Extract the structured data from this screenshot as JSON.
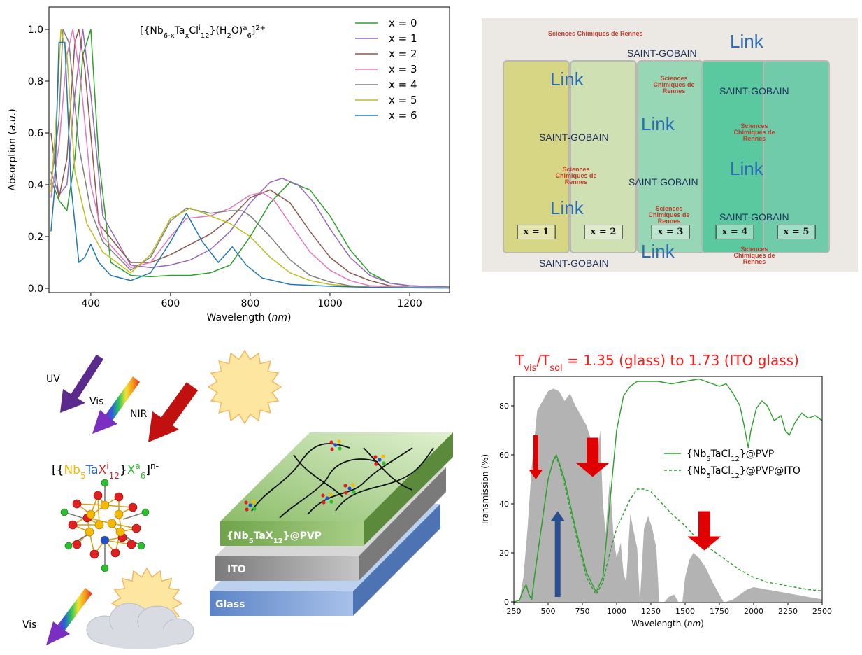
{
  "chart_data": [
    {
      "type": "line",
      "title": "[{Nb6-xTaxCli12}(H2O)a6]2+",
      "xlabel": "Wavelength (nm)",
      "ylabel": "Absorption (a.u.)",
      "xlim": [
        295,
        1300
      ],
      "ylim": [
        0,
        1.0
      ],
      "xticks": [
        400,
        600,
        800,
        1000,
        1200
      ],
      "yticks": [
        0.0,
        0.2,
        0.4,
        0.6,
        0.8,
        1.0
      ],
      "legend": "top-right",
      "series": [
        {
          "name": "x = 0",
          "color": "#2ca02c",
          "x": [
            300,
            320,
            340,
            360,
            380,
            400,
            420,
            450,
            500,
            550,
            600,
            650,
            700,
            750,
            800,
            850,
            900,
            950,
            1000,
            1050,
            1100,
            1150,
            1200,
            1300
          ],
          "y": [
            0.42,
            0.34,
            0.3,
            0.5,
            0.9,
            1.0,
            0.5,
            0.1,
            0.05,
            0.045,
            0.05,
            0.05,
            0.06,
            0.09,
            0.2,
            0.33,
            0.41,
            0.38,
            0.28,
            0.15,
            0.06,
            0.02,
            0.01,
            0.005
          ]
        },
        {
          "name": "x = 1",
          "color": "#9467bd",
          "x": [
            300,
            320,
            340,
            360,
            380,
            400,
            430,
            500,
            550,
            600,
            650,
            700,
            750,
            800,
            850,
            880,
            920,
            960,
            1000,
            1050,
            1100,
            1150,
            1200,
            1300
          ],
          "y": [
            0.45,
            0.36,
            0.4,
            0.75,
            1.0,
            0.75,
            0.28,
            0.09,
            0.08,
            0.09,
            0.11,
            0.15,
            0.22,
            0.33,
            0.41,
            0.425,
            0.4,
            0.33,
            0.23,
            0.12,
            0.05,
            0.02,
            0.01,
            0.005
          ]
        },
        {
          "name": "x = 2",
          "color": "#8c564b",
          "x": [
            300,
            320,
            340,
            360,
            370,
            385,
            420,
            500,
            550,
            600,
            650,
            700,
            750,
            800,
            850,
            900,
            950,
            1000,
            1050,
            1100,
            1150,
            1200,
            1300
          ],
          "y": [
            0.6,
            0.35,
            0.5,
            0.95,
            1.0,
            0.85,
            0.25,
            0.1,
            0.1,
            0.13,
            0.17,
            0.21,
            0.27,
            0.35,
            0.38,
            0.33,
            0.22,
            0.12,
            0.06,
            0.03,
            0.01,
            0.005,
            0.003
          ]
        },
        {
          "name": "x = 3",
          "color": "#e377c2",
          "x": [
            300,
            320,
            340,
            355,
            375,
            400,
            430,
            500,
            550,
            600,
            640,
            700,
            750,
            800,
            830,
            860,
            900,
            950,
            1000,
            1050,
            1100,
            1200,
            1300
          ],
          "y": [
            0.35,
            0.55,
            0.9,
            1.0,
            0.8,
            0.4,
            0.2,
            0.08,
            0.1,
            0.2,
            0.27,
            0.28,
            0.31,
            0.36,
            0.37,
            0.34,
            0.25,
            0.14,
            0.07,
            0.03,
            0.01,
            0.005,
            0.003
          ]
        },
        {
          "name": "x = 4",
          "color": "#7f7f7f",
          "x": [
            300,
            320,
            330,
            345,
            370,
            400,
            430,
            500,
            550,
            600,
            640,
            700,
            750,
            780,
            800,
            850,
            900,
            950,
            1000,
            1050,
            1100,
            1200,
            1300
          ],
          "y": [
            0.4,
            0.65,
            1.0,
            0.95,
            0.55,
            0.3,
            0.18,
            0.07,
            0.12,
            0.26,
            0.31,
            0.29,
            0.3,
            0.3,
            0.28,
            0.2,
            0.11,
            0.05,
            0.025,
            0.01,
            0.005,
            0.003,
            0.002
          ]
        },
        {
          "name": "x = 5",
          "color": "#bcbd22",
          "x": [
            300,
            315,
            325,
            340,
            360,
            390,
            430,
            500,
            550,
            600,
            650,
            700,
            750,
            800,
            850,
            900,
            950,
            1000,
            1050,
            1100,
            1200,
            1300
          ],
          "y": [
            0.37,
            0.7,
            1.0,
            0.9,
            0.45,
            0.25,
            0.14,
            0.06,
            0.13,
            0.27,
            0.31,
            0.28,
            0.25,
            0.2,
            0.12,
            0.06,
            0.03,
            0.015,
            0.008,
            0.005,
            0.003,
            0.002
          ]
        },
        {
          "name": "x = 6",
          "color": "#1f77b4",
          "x": [
            300,
            310,
            320,
            335,
            350,
            370,
            385,
            400,
            420,
            450,
            500,
            550,
            600,
            640,
            680,
            720,
            755,
            790,
            830,
            900,
            1000,
            1100,
            1200,
            1300
          ],
          "y": [
            0.22,
            0.4,
            0.95,
            0.95,
            0.4,
            0.1,
            0.12,
            0.17,
            0.1,
            0.05,
            0.03,
            0.06,
            0.18,
            0.29,
            0.18,
            0.1,
            0.16,
            0.09,
            0.04,
            0.015,
            0.008,
            0.004,
            0.002,
            0.001
          ]
        }
      ]
    },
    {
      "type": "line",
      "title": "Tvis/Tsol = 1.35 (glass) to 1.73 (ITO glass)",
      "xlabel": "Wavelength (nm)",
      "ylabel": "Transmission (%)",
      "xlim": [
        250,
        2500
      ],
      "ylim": [
        0,
        92
      ],
      "xticks": [
        250,
        500,
        750,
        1000,
        1250,
        1500,
        1750,
        2000,
        2250,
        2500
      ],
      "yticks": [
        0,
        20,
        40,
        60,
        80
      ],
      "legend": "center-right",
      "background_area": {
        "color": "#b3b3b3",
        "x": [
          290,
          320,
          350,
          380,
          420,
          460,
          500,
          540,
          580,
          620,
          660,
          700,
          740,
          780,
          820,
          850,
          880,
          900,
          920,
          950,
          980,
          1000,
          1030,
          1050,
          1070,
          1100,
          1120,
          1150,
          1170,
          1200,
          1230,
          1260,
          1290,
          1310,
          1330,
          1350,
          1380,
          1420,
          1450,
          1480,
          1500,
          1530,
          1560,
          1600,
          1650,
          1700,
          1750,
          1780,
          1800,
          1850,
          1900,
          1950,
          2000,
          2100,
          2200,
          2300,
          2400,
          2500
        ],
        "y": [
          0,
          10,
          30,
          55,
          78,
          82,
          86,
          87,
          86,
          82,
          85,
          80,
          76,
          72,
          65,
          55,
          70,
          40,
          28,
          50,
          25,
          18,
          24,
          12,
          8,
          36,
          30,
          22,
          0,
          30,
          35,
          30,
          22,
          0,
          0,
          0,
          2,
          3,
          0,
          0,
          10,
          17,
          20,
          18,
          14,
          8,
          3,
          0,
          0,
          1,
          3,
          5,
          6,
          5,
          4,
          3,
          2,
          1
        ]
      },
      "arrows": [
        {
          "color": "#e00000",
          "x": 410,
          "y_from": 68,
          "y_to": 50
        },
        {
          "color": "#e00000",
          "x": 825,
          "y_from": 67,
          "y_to": 51
        },
        {
          "color": "#e00000",
          "x": 1640,
          "y_from": 37,
          "y_to": 21
        },
        {
          "color": "#2a4e8e",
          "x": 570,
          "y_from": 2,
          "y_to": 37
        }
      ],
      "series": [
        {
          "name": "{Nb5TaCl12}@PVP",
          "color": "#2ca02c",
          "dash": "solid",
          "x": [
            250,
            290,
            320,
            340,
            360,
            380,
            400,
            450,
            500,
            540,
            560,
            580,
            620,
            700,
            780,
            850,
            900,
            950,
            1000,
            1050,
            1100,
            1150,
            1200,
            1300,
            1400,
            1500,
            1600,
            1700,
            1750,
            1800,
            1850,
            1900,
            1930,
            1960,
            1980,
            2020,
            2060,
            2100,
            2150,
            2200,
            2230,
            2260,
            2300,
            2350,
            2400,
            2450,
            2500
          ],
          "y": [
            0,
            0.5,
            5,
            7,
            3,
            1,
            10,
            30,
            50,
            58,
            60,
            57,
            50,
            30,
            12,
            4,
            10,
            40,
            70,
            84,
            88,
            90,
            90,
            90,
            89,
            90,
            91,
            89,
            88,
            89,
            85,
            80,
            72,
            63,
            70,
            79,
            82,
            80,
            74,
            76,
            70,
            68,
            73,
            77,
            75,
            76,
            74
          ]
        },
        {
          "name": "{Nb5TaCl12}@PVP@ITO",
          "color": "#2ca02c",
          "dash": "dashed",
          "x": [
            250,
            290,
            320,
            340,
            360,
            380,
            400,
            450,
            500,
            540,
            560,
            580,
            620,
            700,
            780,
            850,
            900,
            950,
            1000,
            1050,
            1100,
            1150,
            1200,
            1250,
            1300,
            1400,
            1500,
            1600,
            1700,
            1800,
            1900,
            2000,
            2100,
            2200,
            2300,
            2400,
            2500
          ],
          "y": [
            0,
            0.5,
            5,
            7,
            3,
            1,
            10,
            30,
            50,
            58,
            59,
            56,
            48,
            28,
            10,
            3,
            8,
            20,
            30,
            36,
            42,
            46,
            46,
            45,
            42,
            36,
            31,
            25,
            21,
            17,
            13,
            10,
            8,
            7,
            6,
            5,
            4.5
          ]
        }
      ]
    }
  ],
  "photo": {
    "labels": [
      "x = 1",
      "x = 2",
      "x = 3",
      "x = 4",
      "x = 5"
    ],
    "logo_saint_gobain": "SAINT-GOBAIN",
    "logo_link": "Link",
    "logo_scr": "Sciences Chimiques de Rennes",
    "slide_colors": [
      "#d6d684",
      "#cfe0b2",
      "#97d7b5",
      "#5ac99f",
      "#6fcba9"
    ]
  },
  "schematic": {
    "arrow_uv": "UV",
    "arrow_vis": "Vis",
    "arrow_nir": "NIR",
    "arrow_vis_bottom": "Vis",
    "cluster_formula": "[{Nb5TaXi12}Xa6]n-",
    "layer_top": "{Nb5TaX12}@PVP",
    "layer_middle": "ITO",
    "layer_bottom": "Glass",
    "colors": {
      "uv": "#5a2a8c",
      "nir": "#c01010",
      "sun": "#fde7a0",
      "sun_stroke": "#f4b860",
      "cloud": "#d8dce2",
      "layer_top": "#82b55f",
      "layer_mid": "#8f8f8f",
      "layer_bot": "#6a93cf"
    }
  }
}
